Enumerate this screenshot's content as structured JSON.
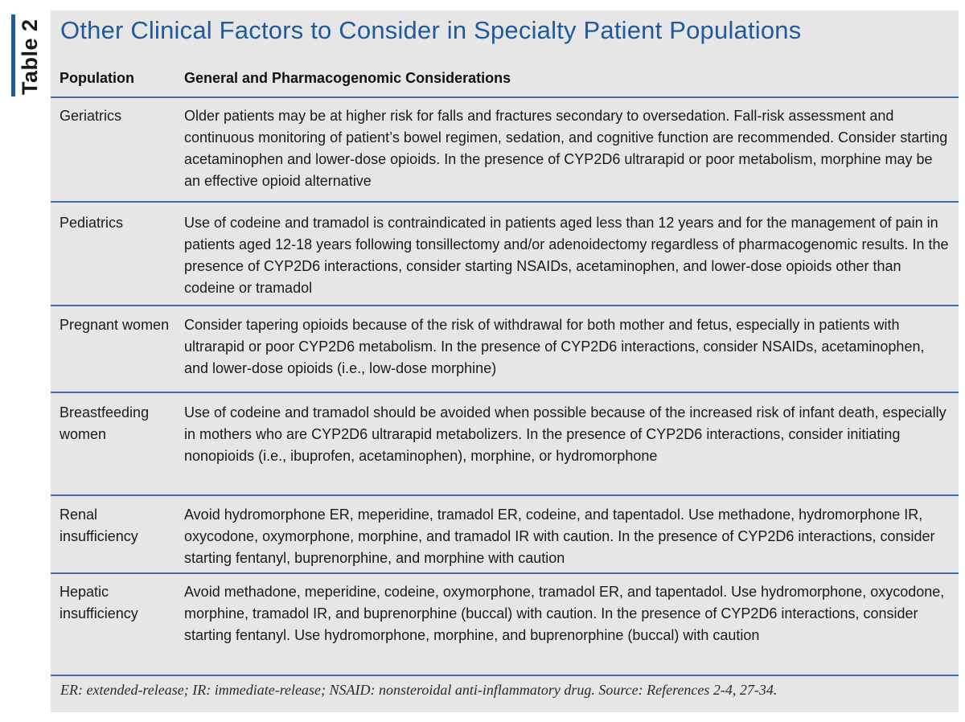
{
  "side_label": "Table 2",
  "title": "Other Clinical Factors to Consider in Specialty Patient Populations",
  "columns": {
    "population": "Population",
    "considerations": "General and Pharmacogenomic Considerations"
  },
  "rows": [
    {
      "population": "Geriatrics",
      "considerations": "Older patients may be at higher risk for falls and fractures secondary to oversedation. Fall-risk assessment and continuous monitoring of patient’s bowel regimen, sedation, and cognitive function are recommended. Consider starting acetaminophen and lower-dose opioids. In the presence of CYP2D6 ultrarapid or poor metabolism, morphine may be an effective opioid alternative"
    },
    {
      "population": "Pediatrics",
      "considerations": "Use of codeine and tramadol is contraindicated in patients aged less than 12 years and for the management of pain in patients aged 12-18 years following tonsillectomy and/or adenoidectomy regardless of pharmacogenomic results. In the presence of CYP2D6 interactions, consider starting NSAIDs, acetaminophen, and lower-dose opioids other than codeine or tramadol"
    },
    {
      "population": "Pregnant women",
      "considerations": "Consider tapering opioids because of the risk of withdrawal for both mother and fetus, especially in patients with ultrarapid or poor CYP2D6 metabolism. In the presence of CYP2D6 interactions, consider NSAIDs, acetaminophen, and lower-dose opioids (i.e., low-dose morphine)"
    },
    {
      "population": "Breastfeeding women",
      "considerations": "Use of codeine and tramadol should be avoided when possible because of the increased risk of infant death, especially in mothers who are CYP2D6 ultrarapid metabolizers. In the presence of CYP2D6 interactions, consider initiating nonopioids (i.e., ibuprofen, acetaminophen), morphine, or hydromorphone"
    },
    {
      "population": "Renal insufficiency",
      "considerations": "Avoid hydromorphone ER, meperidine, tramadol ER, codeine, and tapentadol. Use methadone, hydromorphone IR, oxycodone, oxymorphone, morphine, and tramadol IR with caution. In the presence of CYP2D6 interactions, consider starting fentanyl, buprenorphine, and morphine with caution"
    },
    {
      "population": "Hepatic insufficiency",
      "considerations": "Avoid methadone, meperidine, codeine, oxymorphone, tramadol ER, and tapentadol. Use hydromorphone, oxycodone, morphine, tramadol IR, and buprenorphine (buccal) with caution. In the presence of CYP2D6 interactions, consider starting fentanyl. Use hydromorphone, morphine, and buprenorphine (buccal) with caution"
    }
  ],
  "footnote": "ER: extended-release; IR: immediate-release; NSAID: nonsteroidal anti-inflammatory drug. Source: References 2-4, 27-34.",
  "colors": {
    "accent": "#1f5a9c",
    "panel": "#e6e6e6",
    "rule": "#3f6fa6"
  }
}
